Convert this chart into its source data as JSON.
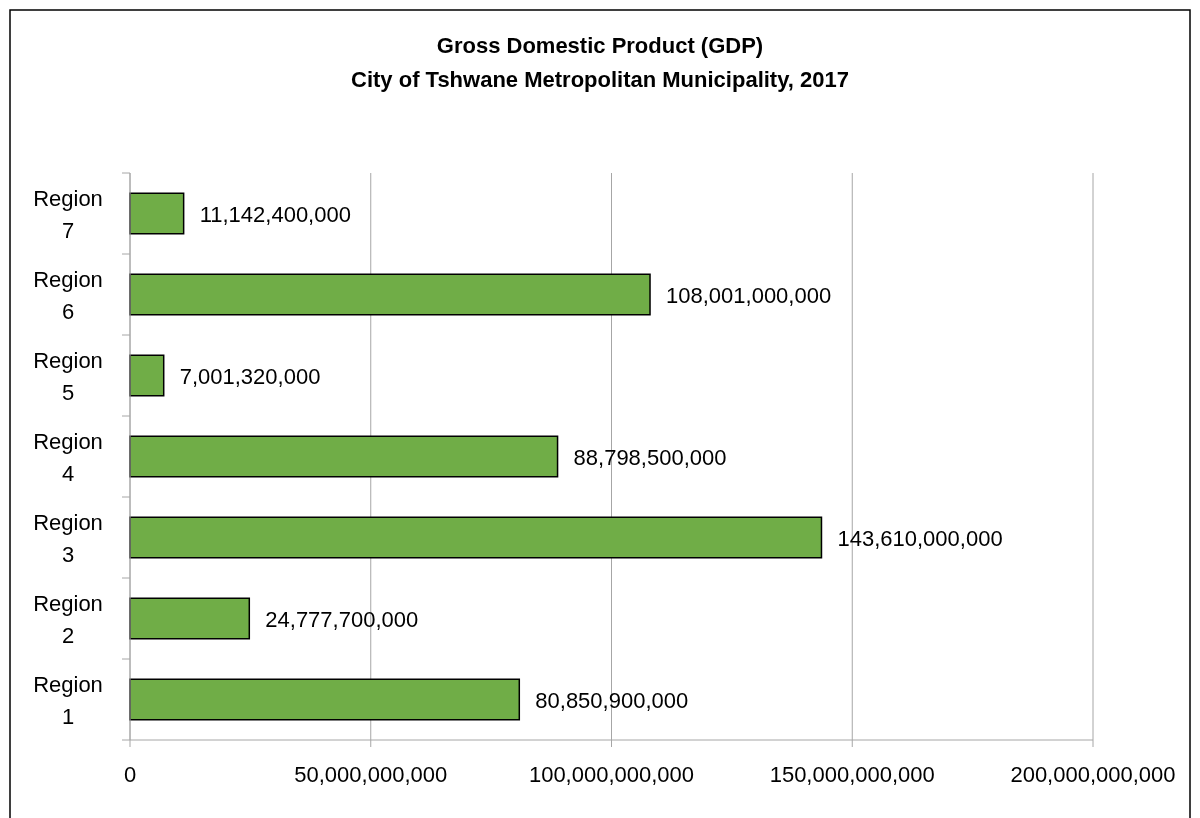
{
  "chart_data": {
    "type": "bar",
    "orientation": "horizontal",
    "title": "Gross Domestic Product (GDP)",
    "subtitle": "City of Tshwane Metropolitan Municipality, 2017",
    "categories": [
      "Region 7",
      "Region 6",
      "Region 5",
      "Region 4",
      "Region 3",
      "Region 2",
      "Region 1"
    ],
    "values": [
      11142400000,
      108001000000,
      7001320000,
      88798500000,
      143610000000,
      24777700000,
      80850900000
    ],
    "value_labels": [
      "11,142,400,000",
      "108,001,000,000",
      "7,001,320,000",
      "88,798,500,000",
      "143,610,000,000",
      "24,777,700,000",
      "80,850,900,000"
    ],
    "color": "#70ad47",
    "xlim": [
      0,
      200000000000
    ],
    "xticks": [
      0,
      {
        "value": 50000000000,
        "label": "50,000,000,000"
      },
      {
        "value": 100000000000,
        "label": "100,000,000,000"
      },
      {
        "value": 150000000000,
        "label": "150,000,000,000"
      },
      {
        "value": 200000000000,
        "label": "200,000,000,000"
      }
    ],
    "grid": "x"
  }
}
